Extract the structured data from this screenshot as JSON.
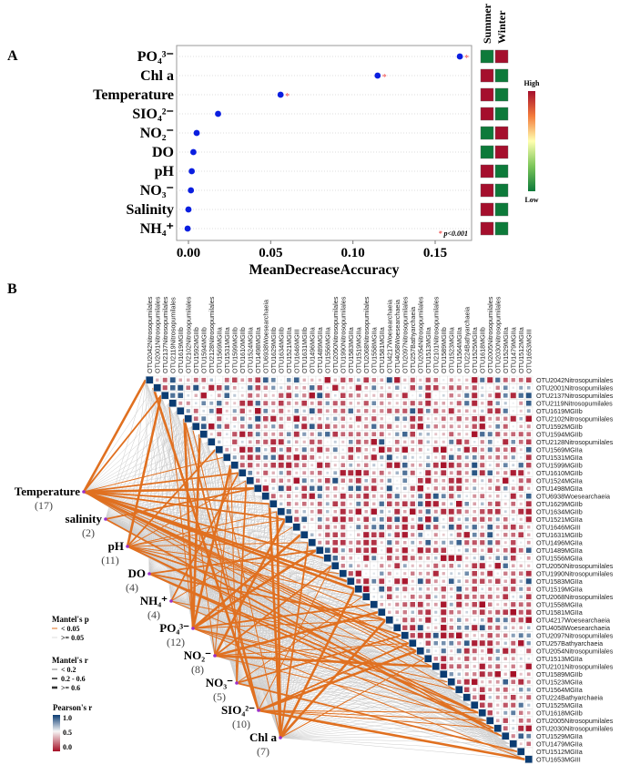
{
  "chart_data": [
    {
      "type": "scatter",
      "panel_label": "A",
      "xlabel": "MeanDecreaseAccuracy",
      "xticks": [
        "0.00",
        "0.05",
        "0.10",
        "0.15"
      ],
      "xlim": [
        -0.007,
        0.172
      ],
      "categories": [
        "PO₄³⁻",
        "Chl a",
        "Temperature",
        "SIO₄²⁻",
        "NO₂⁻",
        "DO",
        "pH",
        "NO₃⁻",
        "Salinity",
        "NH₄⁺"
      ],
      "values": [
        0.165,
        0.115,
        0.056,
        0.018,
        0.005,
        0.003,
        0.002,
        0.0015,
        0.0,
        -0.0005
      ],
      "significant": [
        true,
        true,
        true,
        false,
        false,
        false,
        false,
        false,
        false,
        false
      ],
      "significance_note": "p<0.001",
      "point_color": "#0a1ee0",
      "star_color": "#f05050",
      "season_headers": [
        "Summer",
        "Winter"
      ],
      "season_levels": [
        [
          "Low",
          "High"
        ],
        [
          "High",
          "Low"
        ],
        [
          "High",
          "Low"
        ],
        [
          "High",
          "Low"
        ],
        [
          "Low",
          "High"
        ],
        [
          "Low",
          "High"
        ],
        [
          "High",
          "Low"
        ],
        [
          "High",
          "Low"
        ],
        [
          "High",
          "Low"
        ],
        [
          "High",
          "Low"
        ]
      ],
      "level_colors": {
        "High": "#a50f2d",
        "Low": "#0d7a3a"
      },
      "colorbar": {
        "high_label": "High",
        "low_label": "Low",
        "colors": [
          "#a50f2d",
          "#f47c3c",
          "#ffffb0",
          "#7cc65a",
          "#0d7a3a"
        ]
      }
    },
    {
      "type": "heatmap",
      "panel_label": "B",
      "otus": [
        "OTU2042Nitrosopumilales",
        "OTU2001Nitrosopumilales",
        "OTU2137Nitrosopumilales",
        "OTU2119Nitrosopumilales",
        "OTU1619MGIIb",
        "OTU2102Nitrosopumilales",
        "OTU1592MGIIb",
        "OTU1594MGIIb",
        "OTU2128Nitrosopumilales",
        "OTU1569MGIIa",
        "OTU1531MGIIa",
        "OTU1599MGIIb",
        "OTU1610MGIIb",
        "OTU1524MGIIa",
        "OTU1498MGIIa",
        "OTU6938Woesearchaeia",
        "OTU1629MGIIb",
        "OTU1634MGIIb",
        "OTU1521MGIIa",
        "OTU1646MGIII",
        "OTU1631MGIIb",
        "OTU1496MGIIa",
        "OTU1489MGIIa",
        "OTU1556MGIIa",
        "OTU2050Nitrosopumilales",
        "OTU1990Nitrosopumilales",
        "OTU1583MGIIa",
        "OTU1519MGIIa",
        "OTU2068Nitrosopumilales",
        "OTU1558MGIIa",
        "OTU1581MGIIa",
        "OTU4217Woesearchaeia",
        "OTU4058Woesearchaeia",
        "OTU2097Nitrosopumilales",
        "OTU257Bathyarchaeia",
        "OTU2054Nitrosopumilales",
        "OTU1513MGIIa",
        "OTU2101Nitrosopumilales",
        "OTU1589MGIIb",
        "OTU1523MGIIa",
        "OTU1564MGIIa",
        "OTU224Bathyarchaeia",
        "OTU1525MGIIa",
        "OTU1618MGIIb",
        "OTU2005Nitrosopumilales",
        "OTU2030Nitrosopumilales",
        "OTU1529MGIIa",
        "OTU1479MGIIa",
        "OTU1512MGIIa",
        "OTU1653MGIII"
      ],
      "env_factors": [
        {
          "name": "Temperature",
          "count": "(17)"
        },
        {
          "name": "salinity",
          "count": "(2)"
        },
        {
          "name": "pH",
          "count": "(11)"
        },
        {
          "name": "DO",
          "count": "(4)"
        },
        {
          "name": "NH₄⁺",
          "count": "(4)"
        },
        {
          "name": "PO₄³⁻",
          "count": "(12)"
        },
        {
          "name": "NO₂⁻",
          "count": "(8)"
        },
        {
          "name": "NO₃⁻",
          "count": "(5)"
        },
        {
          "name": "SIO₄²⁻",
          "count": "(10)"
        },
        {
          "name": "Chl a",
          "count": "(7)"
        }
      ],
      "legend": {
        "mantel_p_title": "Mantel's p",
        "mantel_p_items": [
          "< 0.05",
          ">= 0.05"
        ],
        "mantel_r_title": "Mantel's r",
        "mantel_r_items": [
          "< 0.2",
          "0.2 - 0.6",
          ">= 0.6"
        ],
        "pearson_title": "Pearson's r",
        "pearson_ticks": [
          "1.0",
          "0.5",
          "0.0"
        ]
      },
      "colors": {
        "significant": "#e07020",
        "nonsignificant": "#cccccc",
        "positive": "#0b3c72",
        "negative": "#a50f26",
        "node": "#9b30c8"
      }
    }
  ]
}
